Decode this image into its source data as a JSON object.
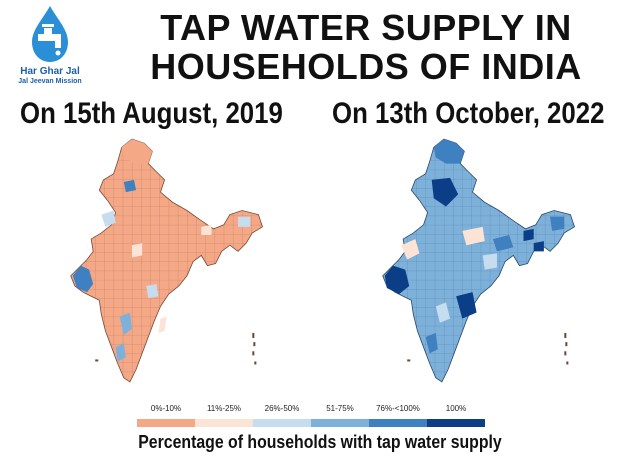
{
  "header": {
    "title_line1": "TAP WATER SUPPLY IN",
    "title_line2": "HOUSEHOLDS OF INDIA"
  },
  "logo": {
    "name_line1": "Har Ghar Jal",
    "name_line2": "Jal Jeevan Mission",
    "icon": "water-drop-tap-icon"
  },
  "maps": [
    {
      "date_label": "On 15th August, 2019",
      "dominant_category": "0%-10%"
    },
    {
      "date_label": "On 13th October, 2022",
      "dominant_category": "51-75%"
    }
  ],
  "legend": {
    "title": "Percentage of households with tap water supply",
    "items": [
      {
        "label": "0%-10%",
        "color": "#f4a886"
      },
      {
        "label": "11%-25%",
        "color": "#fbe3d6"
      },
      {
        "label": "26%-50%",
        "color": "#c6dcef"
      },
      {
        "label": "51-75%",
        "color": "#7eb1da"
      },
      {
        "label": "76%-<100%",
        "color": "#3f80c0"
      },
      {
        "label": "100%",
        "color": "#0b3e86"
      }
    ]
  }
}
